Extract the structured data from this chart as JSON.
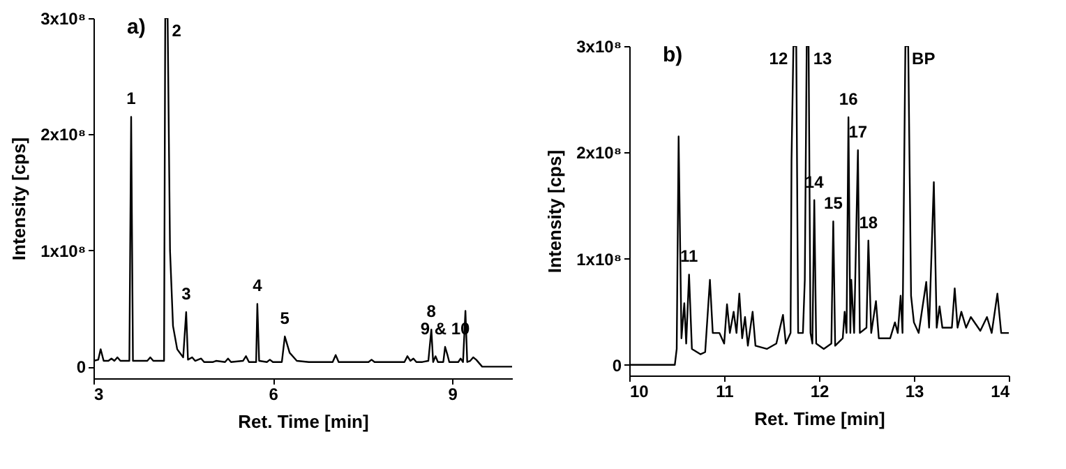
{
  "chart_data": [
    {
      "type": "line",
      "title": "a)",
      "xlabel": "Ret. Time [min]",
      "ylabel": "Intensity [cps]",
      "xlim": [
        3,
        10
      ],
      "xticks": [
        3,
        6,
        9
      ],
      "ylim": [
        -10000000,
        300000000
      ],
      "yticks": [
        0,
        {
          "value": 100000000,
          "label": "1x10⁸"
        },
        {
          "value": 200000000,
          "label": "2x10⁸"
        },
        {
          "value": 300000000,
          "label": "3x10⁸"
        }
      ],
      "x": [
        3.0,
        3.08,
        3.12,
        3.17,
        3.25,
        3.3,
        3.35,
        3.4,
        3.45,
        3.6,
        3.63,
        3.66,
        3.9,
        3.95,
        4.0,
        4.18,
        4.2,
        4.24,
        4.28,
        4.33,
        4.4,
        4.5,
        4.55,
        4.58,
        4.65,
        4.7,
        4.8,
        4.85,
        5.0,
        5.05,
        5.2,
        5.25,
        5.3,
        5.5,
        5.55,
        5.6,
        5.72,
        5.74,
        5.77,
        5.9,
        5.95,
        6.0,
        6.15,
        6.2,
        6.28,
        6.4,
        6.6,
        7.0,
        7.05,
        7.1,
        7.6,
        7.65,
        7.7,
        8.2,
        8.25,
        8.3,
        8.35,
        8.4,
        8.5,
        8.6,
        8.65,
        8.68,
        8.72,
        8.76,
        8.85,
        8.88,
        8.92,
        8.95,
        9.1,
        9.14,
        9.18,
        9.22,
        9.25,
        9.3,
        9.35,
        9.4,
        9.45,
        9.5,
        10.0
      ],
      "series": [
        {
          "color": "#000000",
          "values": [
            5000000,
            6000000,
            15000000,
            5000000,
            5000000,
            7000000,
            5000000,
            8000000,
            5000000,
            5000000,
            215000000,
            5000000,
            5000000,
            8000000,
            5000000,
            5000000,
            300000000,
            300000000,
            100000000,
            35000000,
            15000000,
            8000000,
            47000000,
            6000000,
            8000000,
            5000000,
            7000000,
            4000000,
            4000000,
            5000000,
            4000000,
            7000000,
            4000000,
            5000000,
            9000000,
            4000000,
            4000000,
            54000000,
            5000000,
            4000000,
            6000000,
            4000000,
            4000000,
            26000000,
            12000000,
            5000000,
            4000000,
            4000000,
            10000000,
            4000000,
            4000000,
            6000000,
            4000000,
            4000000,
            9000000,
            5000000,
            7000000,
            4000000,
            4000000,
            5000000,
            32000000,
            4000000,
            9000000,
            4000000,
            4000000,
            17000000,
            10000000,
            4000000,
            4000000,
            7000000,
            4000000,
            48000000,
            4000000,
            5000000,
            8000000,
            6000000,
            3000000,
            0,
            0
          ]
        }
      ],
      "annotations": [
        {
          "text": "1",
          "x": 3.63,
          "y": 215000000
        },
        {
          "text": "2",
          "x": 4.22,
          "y": 300000000
        },
        {
          "text": "3",
          "x": 4.55,
          "y": 47000000
        },
        {
          "text": "4",
          "x": 5.74,
          "y": 54000000
        },
        {
          "text": "5",
          "x": 6.2,
          "y": 26000000
        },
        {
          "text": "8",
          "x": 8.65,
          "y": 32000000
        },
        {
          "text": "9 & 10",
          "x": 8.88,
          "y": 17000000
        }
      ]
    },
    {
      "type": "line",
      "title": "b)",
      "xlabel": "Ret. Time [min]",
      "ylabel": "Intensity [cps]",
      "xlim": [
        10,
        14
      ],
      "xticks": [
        10,
        11,
        12,
        13,
        14
      ],
      "ylim": [
        -10000000,
        300000000
      ],
      "yticks": [
        0,
        {
          "value": 100000000,
          "label": "1x10⁸"
        },
        {
          "value": 200000000,
          "label": "2x10⁸"
        },
        {
          "value": 300000000,
          "label": "3x10⁸"
        }
      ],
      "x": [
        10.0,
        10.48,
        10.5,
        10.52,
        10.55,
        10.58,
        10.6,
        10.63,
        10.66,
        10.75,
        10.8,
        10.85,
        10.88,
        10.95,
        11.0,
        11.03,
        11.06,
        11.1,
        11.13,
        11.16,
        11.19,
        11.22,
        11.25,
        11.3,
        11.33,
        11.45,
        11.55,
        11.62,
        11.65,
        11.7,
        11.71,
        11.73,
        11.76,
        11.78,
        11.83,
        11.85,
        11.87,
        11.89,
        11.91,
        11.93,
        11.95,
        11.97,
        12.05,
        12.13,
        12.15,
        12.17,
        12.25,
        12.27,
        12.29,
        12.31,
        12.33,
        12.34,
        12.37,
        12.41,
        12.43,
        12.5,
        12.52,
        12.55,
        12.6,
        12.63,
        12.75,
        12.8,
        12.83,
        12.86,
        12.88,
        12.91,
        12.94,
        12.97,
        13.0,
        13.05,
        13.13,
        13.16,
        13.21,
        13.24,
        13.27,
        13.3,
        13.4,
        13.43,
        13.46,
        13.5,
        13.55,
        13.6,
        13.7,
        13.77,
        13.82,
        13.88,
        13.92,
        14.0
      ],
      "series": [
        {
          "color": "#000000",
          "values": [
            0,
            0,
            15000000,
            215000000,
            25000000,
            58000000,
            20000000,
            85000000,
            15000000,
            10000000,
            12000000,
            80000000,
            30000000,
            30000000,
            20000000,
            57000000,
            30000000,
            50000000,
            30000000,
            67000000,
            25000000,
            45000000,
            18000000,
            50000000,
            18000000,
            15000000,
            20000000,
            47000000,
            20000000,
            30000000,
            193000000,
            300000000,
            300000000,
            30000000,
            30000000,
            80000000,
            300000000,
            300000000,
            30000000,
            20000000,
            155000000,
            20000000,
            15000000,
            20000000,
            135000000,
            18000000,
            25000000,
            50000000,
            30000000,
            233000000,
            30000000,
            80000000,
            30000000,
            202000000,
            30000000,
            35000000,
            117000000,
            30000000,
            60000000,
            25000000,
            25000000,
            40000000,
            30000000,
            65000000,
            30000000,
            300000000,
            300000000,
            65000000,
            40000000,
            30000000,
            78000000,
            35000000,
            172000000,
            35000000,
            55000000,
            35000000,
            35000000,
            72000000,
            35000000,
            50000000,
            35000000,
            45000000,
            32000000,
            45000000,
            30000000,
            67000000,
            30000000,
            30000000
          ]
        }
      ],
      "annotations": [
        {
          "text": "11",
          "x": 10.63,
          "y": 85000000
        },
        {
          "text": "12",
          "x": 11.73,
          "y": 300000000
        },
        {
          "text": "13",
          "x": 11.88,
          "y": 300000000
        },
        {
          "text": "14",
          "x": 11.95,
          "y": 155000000
        },
        {
          "text": "15",
          "x": 12.15,
          "y": 135000000
        },
        {
          "text": "16",
          "x": 12.31,
          "y": 233000000
        },
        {
          "text": "17",
          "x": 12.41,
          "y": 202000000
        },
        {
          "text": "18",
          "x": 12.52,
          "y": 117000000
        },
        {
          "text": "BP",
          "x": 12.92,
          "y": 300000000
        }
      ]
    }
  ]
}
